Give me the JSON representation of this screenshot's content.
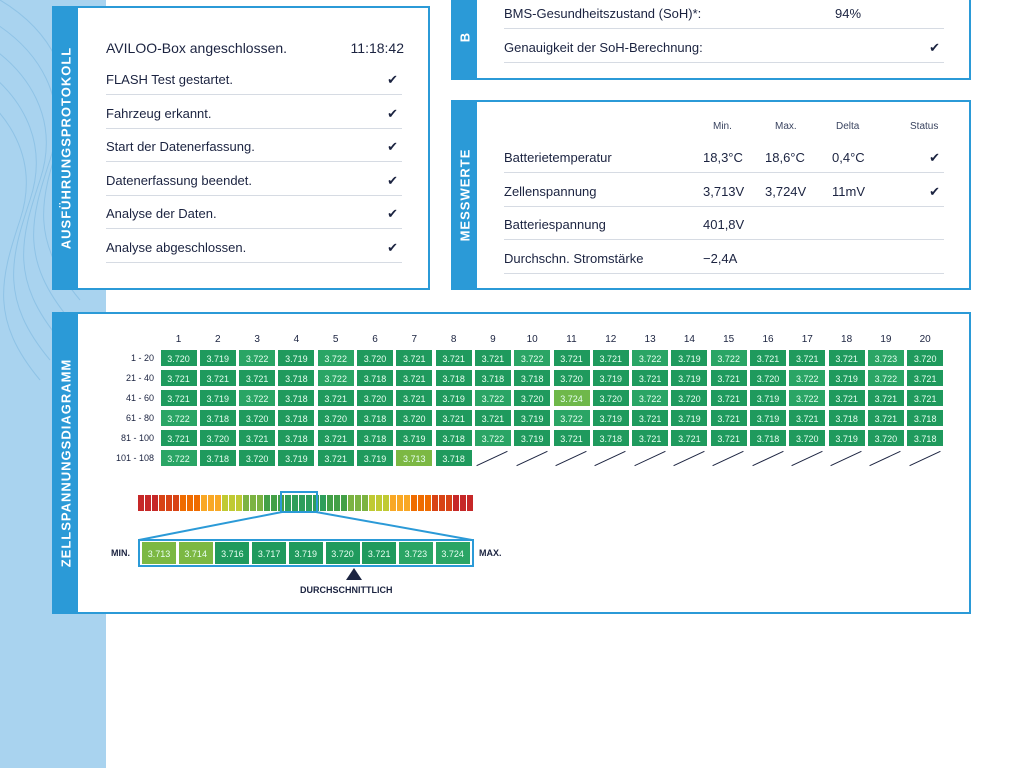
{
  "protocol": {
    "tab": "AUSFÜHRUNGSPROTOKOLL",
    "header_label": "AVILOO-Box angeschlossen.",
    "header_time": "11:18:42",
    "items": [
      {
        "label": "FLASH Test gestartet.",
        "mark": "✔"
      },
      {
        "label": "Fahrzeug erkannt.",
        "mark": "✔"
      },
      {
        "label": "Start der Datenerfassung.",
        "mark": "✔"
      },
      {
        "label": "Datenerfassung beendet.",
        "mark": "✔"
      },
      {
        "label": "Analyse der Daten.",
        "mark": "✔"
      },
      {
        "label": "Analyse abgeschlossen.",
        "mark": "✔"
      }
    ]
  },
  "soh": {
    "tab": "B",
    "rows": [
      {
        "label": "BMS-Gesundheitszustand (SoH)*:",
        "value": "94%"
      },
      {
        "label": "Genauigkeit der SoH-Berechnung:",
        "value": "✔"
      }
    ]
  },
  "messwerte": {
    "tab": "MESSWERTE",
    "headers": {
      "min": "Min.",
      "max": "Max.",
      "delta": "Delta",
      "status": "Status"
    },
    "rows": [
      {
        "label": "Batterietemperatur",
        "min": "18,3°C",
        "max": "18,6°C",
        "delta": "0,4°C",
        "status": "✔"
      },
      {
        "label": "Zellenspannung",
        "min": "3,713V",
        "max": "3,724V",
        "delta": "11mV",
        "status": "✔"
      },
      {
        "label": "Batteriespannung",
        "min": "401,8V",
        "max": "",
        "delta": "",
        "status": ""
      },
      {
        "label": "Durchschn. Stromstärke",
        "min": "−2,4A",
        "max": "",
        "delta": "",
        "status": ""
      }
    ]
  },
  "diagram": {
    "tab": "ZELLSPANNUNGSDIAGRAMM",
    "columns": [
      "1",
      "2",
      "3",
      "4",
      "5",
      "6",
      "7",
      "8",
      "9",
      "10",
      "11",
      "12",
      "13",
      "14",
      "15",
      "16",
      "17",
      "18",
      "19",
      "20"
    ],
    "row_labels": [
      "1 - 20",
      "21 - 40",
      "41 - 60",
      "61 - 80",
      "81 - 100",
      "101 - 108"
    ],
    "rows": [
      [
        "3.720",
        "3.719",
        "3.722",
        "3.719",
        "3.722",
        "3.720",
        "3.721",
        "3.721",
        "3.721",
        "3.722",
        "3.721",
        "3.721",
        "3.722",
        "3.719",
        "3.722",
        "3.721",
        "3.721",
        "3.721",
        "3.723",
        "3.720"
      ],
      [
        "3.721",
        "3.721",
        "3.721",
        "3.718",
        "3.722",
        "3.718",
        "3.721",
        "3.718",
        "3.718",
        "3.718",
        "3.720",
        "3.719",
        "3.721",
        "3.719",
        "3.721",
        "3.720",
        "3.722",
        "3.719",
        "3.722",
        "3.721"
      ],
      [
        "3.721",
        "3.719",
        "3.722",
        "3.718",
        "3.721",
        "3.720",
        "3.721",
        "3.719",
        "3.722",
        "3.720",
        "3.724",
        "3.720",
        "3.722",
        "3.720",
        "3.721",
        "3.719",
        "3.722",
        "3.721",
        "3.721",
        "3.721"
      ],
      [
        "3.722",
        "3.718",
        "3.720",
        "3.718",
        "3.720",
        "3.718",
        "3.720",
        "3.721",
        "3.721",
        "3.719",
        "3.722",
        "3.719",
        "3.721",
        "3.719",
        "3.721",
        "3.719",
        "3.721",
        "3.718",
        "3.721",
        "3.718"
      ],
      [
        "3.721",
        "3.720",
        "3.721",
        "3.718",
        "3.721",
        "3.718",
        "3.719",
        "3.718",
        "3.722",
        "3.719",
        "3.721",
        "3.718",
        "3.721",
        "3.721",
        "3.721",
        "3.718",
        "3.720",
        "3.719",
        "3.720",
        "3.718"
      ],
      [
        "3.722",
        "3.718",
        "3.720",
        "3.719",
        "3.721",
        "3.719",
        "3.713",
        "3.718"
      ]
    ],
    "scale_min_label": "MIN.",
    "scale_max_label": "MAX.",
    "scale_values": [
      "3.713",
      "3.714",
      "3.716",
      "3.717",
      "3.719",
      "3.720",
      "3.721",
      "3.723",
      "3.724"
    ],
    "average_label": "DURCHSCHNITTLICH",
    "colors": {
      "base": "#1f9a5d",
      "mid": "#2fa865",
      "low": "#6fb84a",
      "accent": "#2b9ad7"
    }
  }
}
